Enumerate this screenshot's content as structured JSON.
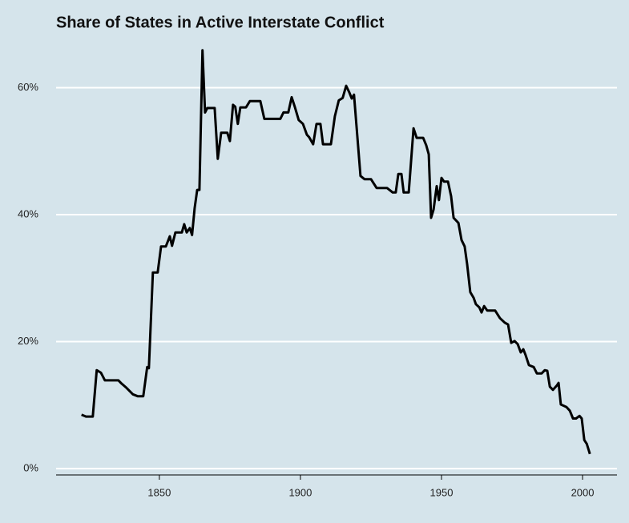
{
  "chart_data": {
    "type": "line",
    "title": "Share of States in Active Interstate Conflict",
    "x": [
      1822.4,
      1824,
      1826.4,
      1827.8,
      1829.3,
      1830.7,
      1835.5,
      1836.6,
      1838.4,
      1840.6,
      1842.3,
      1844.3,
      1845.7,
      1846.3,
      1847.7,
      1849.4,
      1850.6,
      1852.3,
      1853.7,
      1854.5,
      1855.7,
      1858,
      1858.8,
      1859.7,
      1860.8,
      1861.6,
      1862.5,
      1863.4,
      1864.2,
      1865.3,
      1866.2,
      1867,
      1869.6,
      1870.7,
      1871.9,
      1874.1,
      1875,
      1876.1,
      1876.9,
      1877.8,
      1878.7,
      1880.7,
      1882.1,
      1885.8,
      1887.2,
      1892.9,
      1894,
      1895.7,
      1896.9,
      1898,
      1899.4,
      1900.9,
      1902.3,
      1903.1,
      1904.5,
      1905.7,
      1907.1,
      1908,
      1910.8,
      1912.2,
      1913.6,
      1915,
      1916.2,
      1917.3,
      1918.2,
      1919,
      1921.3,
      1922.7,
      1925,
      1927,
      1930.7,
      1932.7,
      1933.8,
      1934.7,
      1935.8,
      1936.6,
      1938.4,
      1940.1,
      1941.2,
      1943.5,
      1944.6,
      1945.5,
      1946.3,
      1947.2,
      1948.3,
      1949.1,
      1950,
      1950.9,
      1952.3,
      1953.4,
      1954.3,
      1956,
      1957.1,
      1958.2,
      1959.1,
      1960.2,
      1961.4,
      1962.2,
      1963.4,
      1964.2,
      1965.1,
      1966.2,
      1969,
      1970.7,
      1972.4,
      1973.6,
      1974.7,
      1975.9,
      1977,
      1978.1,
      1979,
      1979.8,
      1981,
      1982.7,
      1983.8,
      1985.5,
      1986.6,
      1987.5,
      1988.4,
      1989.5,
      1990.9,
      1991.5,
      1992.3,
      1994.3,
      1995.5,
      1996.6,
      1997.7,
      1998.9,
      1999.7,
      2000.6,
      2001.5,
      2002.6
    ],
    "values": [
      8.5,
      8.2,
      8.2,
      15.5,
      15.1,
      13.9,
      13.9,
      13.4,
      12.7,
      11.7,
      11.4,
      11.4,
      16,
      15.8,
      30.9,
      30.9,
      35,
      35,
      36.6,
      35.1,
      37.2,
      37.2,
      38.5,
      37.2,
      37.9,
      36.8,
      41,
      43.9,
      43.9,
      65.9,
      56.1,
      56.8,
      56.8,
      48.8,
      52.9,
      52.9,
      51.6,
      57.3,
      57,
      54.3,
      56.9,
      56.9,
      57.9,
      57.9,
      55.1,
      55.1,
      56.1,
      56.1,
      58.5,
      57,
      54.9,
      54.3,
      52.6,
      52.2,
      51.1,
      54.3,
      54.3,
      51.1,
      51.1,
      55.5,
      58,
      58.4,
      60.3,
      59.3,
      58.3,
      58.9,
      46.1,
      45.6,
      45.6,
      44.2,
      44.2,
      43.5,
      43.5,
      46.4,
      46.4,
      43.5,
      43.5,
      53.6,
      52.1,
      52.1,
      50.9,
      49.5,
      39.5,
      40.8,
      44.5,
      42.3,
      45.8,
      45.2,
      45.2,
      42.9,
      39.5,
      38.7,
      36,
      35,
      32.2,
      27.8,
      26.9,
      25.9,
      25.4,
      24.6,
      25.6,
      24.9,
      24.9,
      23.7,
      23,
      22.7,
      19.8,
      20.1,
      19.6,
      18.3,
      18.8,
      17.9,
      16.3,
      16,
      15,
      15,
      15.5,
      15.4,
      12.9,
      12.4,
      13.1,
      13.5,
      10.1,
      9.7,
      9.1,
      7.9,
      7.9,
      8.3,
      7.9,
      4.5,
      3.9,
      2.3
    ],
    "color": "#000000",
    "xlim": [
      1813.4,
      2012.2
    ],
    "xticks": [
      1850,
      1900,
      1950,
      2000
    ],
    "ylim": [
      -1,
      66.5
    ],
    "yticks": [
      {
        "value": 0,
        "label": "0%"
      },
      {
        "value": 20,
        "label": "20%"
      },
      {
        "value": 40,
        "label": "40%"
      },
      {
        "value": 60,
        "label": "60%"
      }
    ],
    "grid": true
  }
}
